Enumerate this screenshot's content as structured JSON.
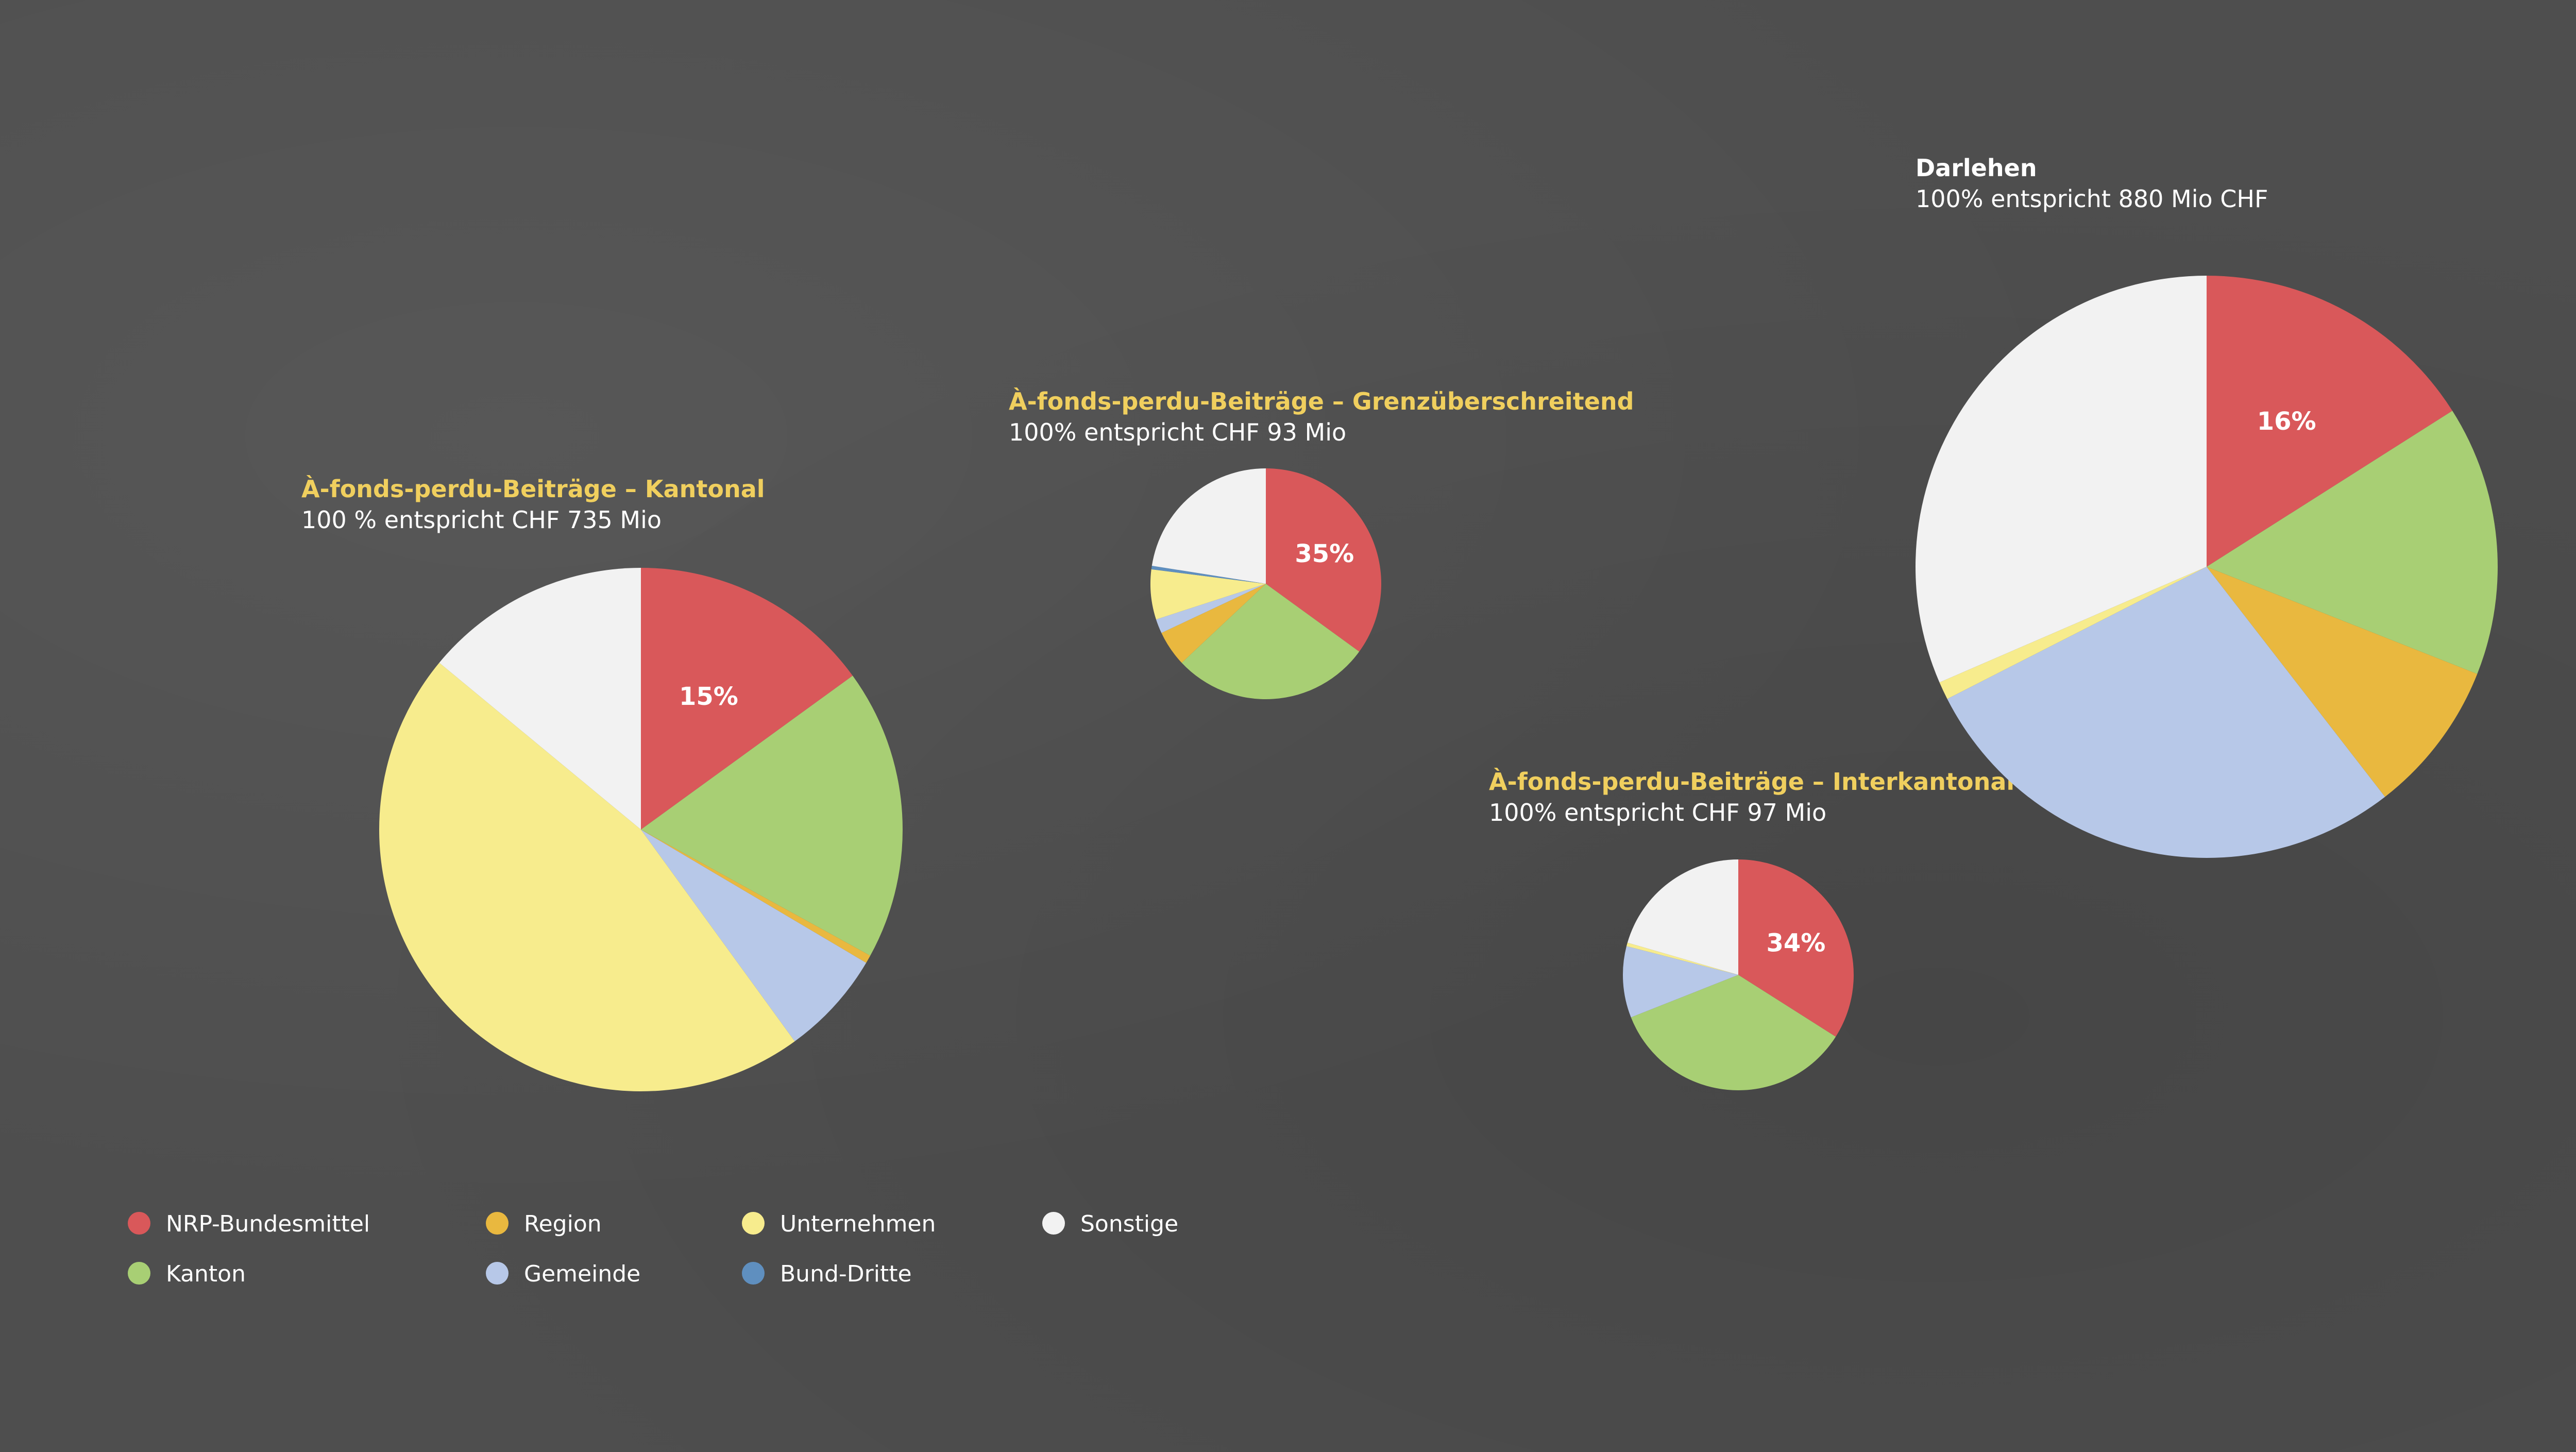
{
  "legend": [
    {
      "label": "NRP-Bundesmittel",
      "color": "#d9585a"
    },
    {
      "label": "Region",
      "color": "#e9b83f"
    },
    {
      "label": "Unternehmen",
      "color": "#f7ec8d"
    },
    {
      "label": "Sonstige",
      "color": "#f2f2f2"
    },
    {
      "label": "Kanton",
      "color": "#a8cf74"
    },
    {
      "label": "Gemeinde",
      "color": "#b7c8e8"
    },
    {
      "label": "Bund-Dritte",
      "color": "#5f8fbf"
    }
  ],
  "chart_data": [
    {
      "type": "pie",
      "title": "À-fonds-perdu-Beiträge – Kantonal",
      "subtitle": "100 % entspricht CHF 735 Mio",
      "highlight_label": "15%",
      "slices": [
        {
          "name": "NRP-Bundesmittel",
          "value": 15
        },
        {
          "name": "Kanton",
          "value": 18
        },
        {
          "name": "Region",
          "value": 0.5
        },
        {
          "name": "Gemeinde",
          "value": 6.5
        },
        {
          "name": "Unternehmen",
          "value": 46
        },
        {
          "name": "Sonstige",
          "value": 14
        }
      ]
    },
    {
      "type": "pie",
      "title": "À-fonds-perdu-Beiträge – Grenzüberschreitend",
      "subtitle": "100% entspricht CHF 93 Mio",
      "highlight_label": "35%",
      "slices": [
        {
          "name": "NRP-Bundesmittel",
          "value": 35
        },
        {
          "name": "Kanton",
          "value": 28
        },
        {
          "name": "Region",
          "value": 5
        },
        {
          "name": "Gemeinde",
          "value": 2
        },
        {
          "name": "Unternehmen",
          "value": 7
        },
        {
          "name": "Bund-Dritte",
          "value": 0.5
        },
        {
          "name": "Sonstige",
          "value": 22.5
        }
      ]
    },
    {
      "type": "pie",
      "title": "À-fonds-perdu-Beiträge – Interkantonal",
      "subtitle": "100% entspricht CHF 97 Mio",
      "highlight_label": "34%",
      "slices": [
        {
          "name": "NRP-Bundesmittel",
          "value": 34
        },
        {
          "name": "Kanton",
          "value": 35
        },
        {
          "name": "Gemeinde",
          "value": 10
        },
        {
          "name": "Unternehmen",
          "value": 0.5
        },
        {
          "name": "Sonstige",
          "value": 20.5
        }
      ]
    },
    {
      "type": "pie",
      "title": "Darlehen",
      "subtitle": "100% entspricht 880 Mio CHF",
      "highlight_label": "16%",
      "slices": [
        {
          "name": "NRP-Bundesmittel",
          "value": 16
        },
        {
          "name": "Kanton",
          "value": 15
        },
        {
          "name": "Region",
          "value": 8.5
        },
        {
          "name": "Gemeinde",
          "value": 28
        },
        {
          "name": "Unternehmen",
          "value": 1
        },
        {
          "name": "Sonstige",
          "value": 31.5
        }
      ]
    }
  ]
}
